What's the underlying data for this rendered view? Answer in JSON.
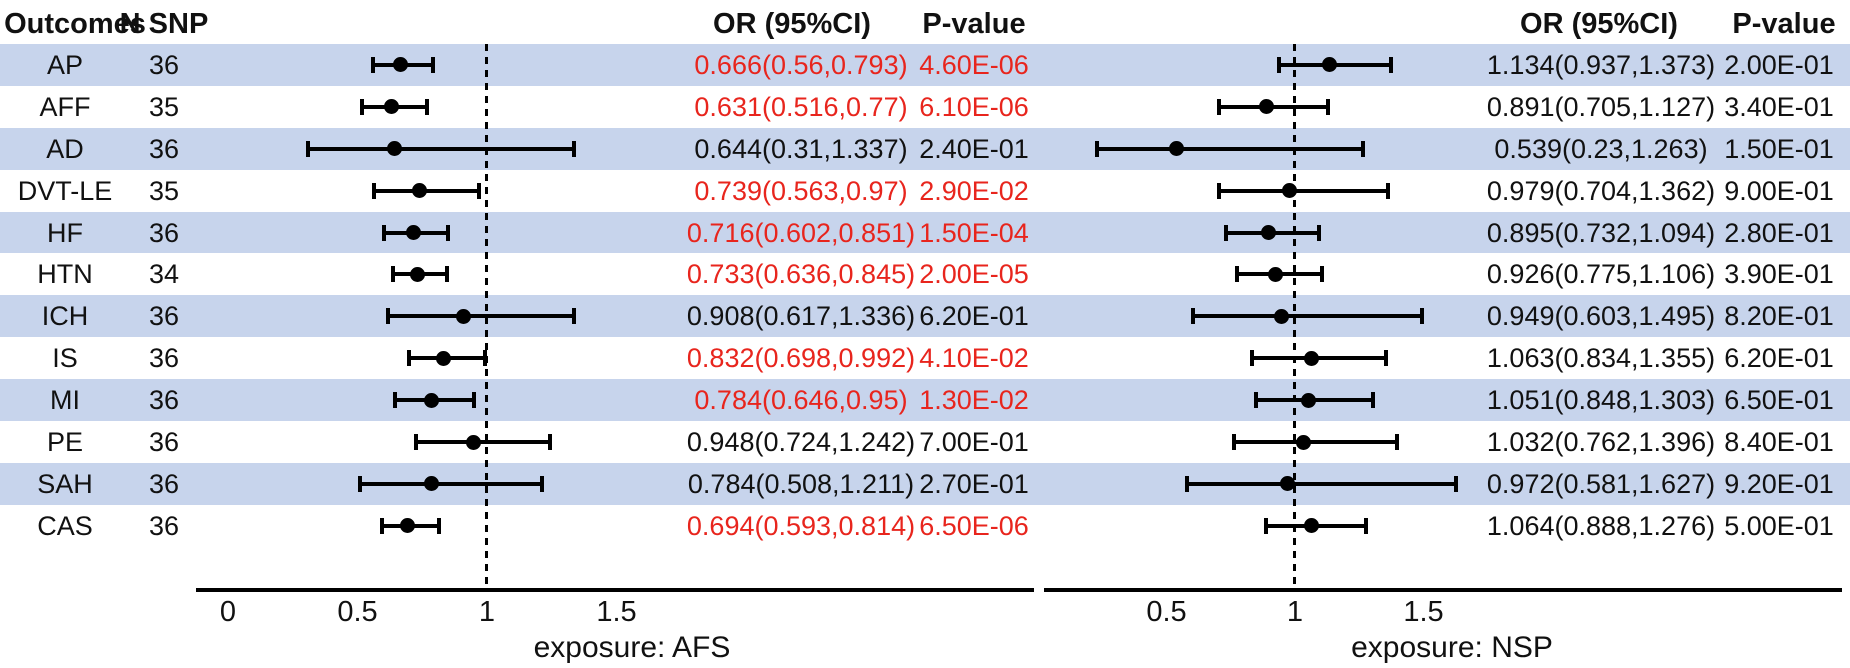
{
  "header": {
    "outcomes": "Outcomes",
    "n_snp": "N SNP",
    "or_ci": "OR (95%CI)",
    "p_value": "P-value"
  },
  "colors": {
    "stripe": "#c7d4ec",
    "significant_text": "#e8251d",
    "normal_text": "#111111",
    "marker": "#000000"
  },
  "chart_data": {
    "type": "forest",
    "outcomes": [
      "AP",
      "AFF",
      "AD",
      "DVT-LE",
      "HF",
      "HTN",
      "ICH",
      "IS",
      "MI",
      "PE",
      "SAH",
      "CAS"
    ],
    "n_snp": [
      "36",
      "35",
      "36",
      "35",
      "36",
      "34",
      "36",
      "36",
      "36",
      "36",
      "36",
      "36"
    ],
    "striped_row_indexes": [
      0,
      2,
      4,
      6,
      8,
      10
    ],
    "panels": [
      {
        "exposure_label": "exposure: AFS",
        "reference_line": 1,
        "axis_ticks": [
          {
            "value": 0,
            "label": "0"
          },
          {
            "value": 0.5,
            "label": "0.5"
          },
          {
            "value": 1,
            "label": "1"
          },
          {
            "value": 1.5,
            "label": "1.5"
          }
        ],
        "rows": [
          {
            "outcome": "AP",
            "or": 0.666,
            "ci_low": 0.56,
            "ci_high": 0.793,
            "or_text": "0.666(0.56,0.793)",
            "p_text": "4.60E-06",
            "significant": true
          },
          {
            "outcome": "AFF",
            "or": 0.631,
            "ci_low": 0.516,
            "ci_high": 0.77,
            "or_text": "0.631(0.516,0.77)",
            "p_text": "6.10E-06",
            "significant": true
          },
          {
            "outcome": "AD",
            "or": 0.644,
            "ci_low": 0.31,
            "ci_high": 1.337,
            "or_text": "0.644(0.31,1.337)",
            "p_text": "2.40E-01",
            "significant": false
          },
          {
            "outcome": "DVT-LE",
            "or": 0.739,
            "ci_low": 0.563,
            "ci_high": 0.97,
            "or_text": "0.739(0.563,0.97)",
            "p_text": "2.90E-02",
            "significant": true
          },
          {
            "outcome": "HF",
            "or": 0.716,
            "ci_low": 0.602,
            "ci_high": 0.851,
            "or_text": "0.716(0.602,0.851)",
            "p_text": "1.50E-04",
            "significant": true
          },
          {
            "outcome": "HTN",
            "or": 0.733,
            "ci_low": 0.636,
            "ci_high": 0.845,
            "or_text": "0.733(0.636,0.845)",
            "p_text": "2.00E-05",
            "significant": true
          },
          {
            "outcome": "ICH",
            "or": 0.908,
            "ci_low": 0.617,
            "ci_high": 1.336,
            "or_text": "0.908(0.617,1.336)",
            "p_text": "6.20E-01",
            "significant": false
          },
          {
            "outcome": "IS",
            "or": 0.832,
            "ci_low": 0.698,
            "ci_high": 0.992,
            "or_text": "0.832(0.698,0.992)",
            "p_text": "4.10E-02",
            "significant": true
          },
          {
            "outcome": "MI",
            "or": 0.784,
            "ci_low": 0.646,
            "ci_high": 0.95,
            "or_text": "0.784(0.646,0.95)",
            "p_text": "1.30E-02",
            "significant": true
          },
          {
            "outcome": "PE",
            "or": 0.948,
            "ci_low": 0.724,
            "ci_high": 1.242,
            "or_text": "0.948(0.724,1.242)",
            "p_text": "7.00E-01",
            "significant": false
          },
          {
            "outcome": "SAH",
            "or": 0.784,
            "ci_low": 0.508,
            "ci_high": 1.211,
            "or_text": "0.784(0.508,1.211)",
            "p_text": "2.70E-01",
            "significant": false
          },
          {
            "outcome": "CAS",
            "or": 0.694,
            "ci_low": 0.593,
            "ci_high": 0.814,
            "or_text": "0.694(0.593,0.814)",
            "p_text": "6.50E-06",
            "significant": true
          }
        ]
      },
      {
        "exposure_label": "exposure: NSP",
        "reference_line": 1,
        "axis_ticks": [
          {
            "value": 0.5,
            "label": "0.5"
          },
          {
            "value": 1,
            "label": "1"
          },
          {
            "value": 1.5,
            "label": "1.5"
          }
        ],
        "rows": [
          {
            "outcome": "AP",
            "or": 1.134,
            "ci_low": 0.937,
            "ci_high": 1.373,
            "or_text": "1.134(0.937,1.373)",
            "p_text": "2.00E-01",
            "significant": false
          },
          {
            "outcome": "AFF",
            "or": 0.891,
            "ci_low": 0.705,
            "ci_high": 1.127,
            "or_text": "0.891(0.705,1.127)",
            "p_text": "3.40E-01",
            "significant": false
          },
          {
            "outcome": "AD",
            "or": 0.539,
            "ci_low": 0.23,
            "ci_high": 1.263,
            "or_text": "0.539(0.23,1.263)",
            "p_text": "1.50E-01",
            "significant": false
          },
          {
            "outcome": "DVT-LE",
            "or": 0.979,
            "ci_low": 0.704,
            "ci_high": 1.362,
            "or_text": "0.979(0.704,1.362)",
            "p_text": "9.00E-01",
            "significant": false
          },
          {
            "outcome": "HF",
            "or": 0.895,
            "ci_low": 0.732,
            "ci_high": 1.094,
            "or_text": "0.895(0.732,1.094)",
            "p_text": "2.80E-01",
            "significant": false
          },
          {
            "outcome": "HTN",
            "or": 0.926,
            "ci_low": 0.775,
            "ci_high": 1.106,
            "or_text": "0.926(0.775,1.106)",
            "p_text": "3.90E-01",
            "significant": false
          },
          {
            "outcome": "ICH",
            "or": 0.949,
            "ci_low": 0.603,
            "ci_high": 1.495,
            "or_text": "0.949(0.603,1.495)",
            "p_text": "8.20E-01",
            "significant": false
          },
          {
            "outcome": "IS",
            "or": 1.063,
            "ci_low": 0.834,
            "ci_high": 1.355,
            "or_text": "1.063(0.834,1.355)",
            "p_text": "6.20E-01",
            "significant": false
          },
          {
            "outcome": "MI",
            "or": 1.051,
            "ci_low": 0.848,
            "ci_high": 1.303,
            "or_text": "1.051(0.848,1.303)",
            "p_text": "6.50E-01",
            "significant": false
          },
          {
            "outcome": "PE",
            "or": 1.032,
            "ci_low": 0.762,
            "ci_high": 1.396,
            "or_text": "1.032(0.762,1.396)",
            "p_text": "8.40E-01",
            "significant": false
          },
          {
            "outcome": "SAH",
            "or": 0.972,
            "ci_low": 0.581,
            "ci_high": 1.627,
            "or_text": "0.972(0.581,1.627)",
            "p_text": "9.20E-01",
            "significant": false
          },
          {
            "outcome": "CAS",
            "or": 1.064,
            "ci_low": 0.888,
            "ci_high": 1.276,
            "or_text": "1.064(0.888,1.276)",
            "p_text": "5.00E-01",
            "significant": false
          }
        ]
      }
    ]
  }
}
